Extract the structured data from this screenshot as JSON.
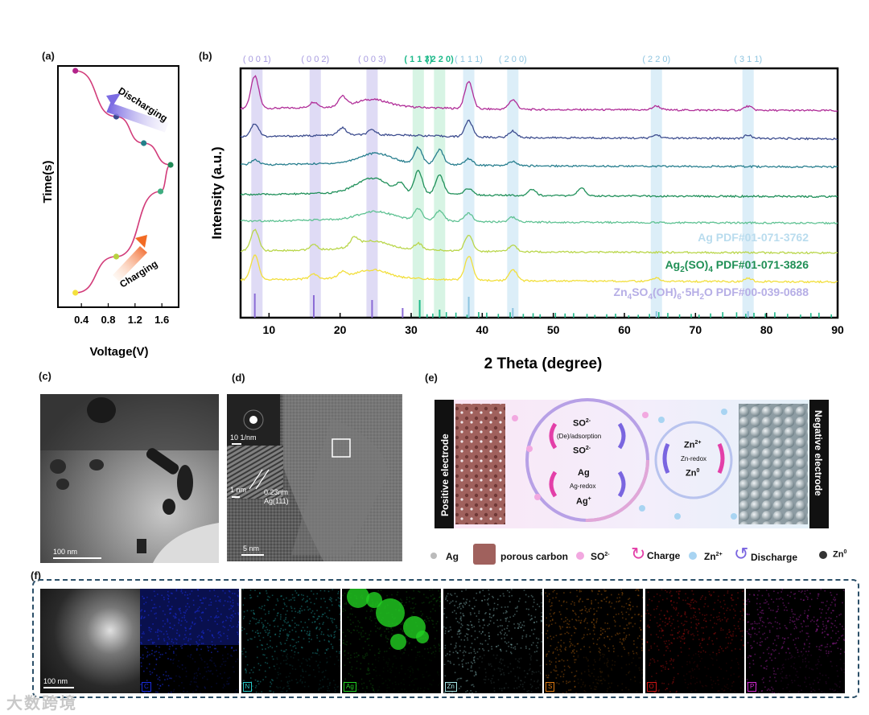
{
  "panels": {
    "a": "(a)",
    "b": "(b)",
    "c": "(c)",
    "d": "(d)",
    "e": "(e)",
    "f": "(f)"
  },
  "panel_a": {
    "ylabel": "Time(s)",
    "xlabel": "Voltage(V)",
    "ticks": [
      "0.4",
      "0.8",
      "1.2",
      "1.6"
    ],
    "discharging": "Discharging",
    "charging": "Charging",
    "points": [
      {
        "v": 0.31,
        "t": 0.94,
        "color": "#b2238a"
      },
      {
        "v": 0.92,
        "t": 0.75,
        "color": "#3b4a8c"
      },
      {
        "v": 1.33,
        "t": 0.64,
        "color": "#23808a"
      },
      {
        "v": 1.73,
        "t": 0.55,
        "color": "#1f8a55"
      },
      {
        "v": 1.58,
        "t": 0.44,
        "color": "#3fad80"
      },
      {
        "v": 0.92,
        "t": 0.17,
        "color": "#b7d140"
      },
      {
        "v": 0.31,
        "t": 0.02,
        "color": "#f4e13e"
      }
    ]
  },
  "chart_data": {
    "type": "line",
    "xlabel": "2 Theta (degree)",
    "ylabel": "Intensity (a.u.)",
    "xlim": [
      6,
      90
    ],
    "xticks": [
      10,
      20,
      30,
      40,
      50,
      60,
      70,
      80,
      90
    ],
    "peak_labels": [
      {
        "label": "( 0 0 1)",
        "x": 8.3,
        "color": "#a79be0"
      },
      {
        "label": "( 0 0 2)",
        "x": 16.5,
        "color": "#a79be0"
      },
      {
        "label": "( 0 0 3)",
        "x": 24.5,
        "color": "#a79be0"
      },
      {
        "label": "( 1 1 3)",
        "x": 31.0,
        "color": "#1db98a"
      },
      {
        "label": "( 2 2 0)",
        "x": 34.0,
        "color": "#1db98a"
      },
      {
        "label": "( 1 1 1)",
        "x": 38.1,
        "color": "#8dc4e0"
      },
      {
        "label": "( 2 0 0)",
        "x": 44.3,
        "color": "#8dc4e0"
      },
      {
        "label": "( 2 2 0)",
        "x": 64.5,
        "color": "#8dc4e0"
      },
      {
        "label": "( 3 1 1)",
        "x": 77.4,
        "color": "#8dc4e0"
      }
    ],
    "series": [
      {
        "name": "s1",
        "color": "#b02d98",
        "peaks": [
          [
            8.0,
            40
          ],
          [
            16.3,
            7
          ],
          [
            20.3,
            12
          ],
          [
            24.5,
            9
          ],
          [
            38.1,
            34
          ],
          [
            44.3,
            12
          ],
          [
            64.5,
            5
          ],
          [
            77.4,
            5
          ]
        ]
      },
      {
        "name": "s2",
        "color": "#3d4d8f",
        "peaks": [
          [
            8.0,
            16
          ],
          [
            20.3,
            9
          ],
          [
            24.5,
            6
          ],
          [
            38.1,
            20
          ],
          [
            44.3,
            8
          ],
          [
            64.5,
            4
          ],
          [
            77.4,
            4
          ]
        ]
      },
      {
        "name": "s3",
        "color": "#277e8e",
        "peaks": [
          [
            8.0,
            6
          ],
          [
            25.0,
            12
          ],
          [
            31.0,
            20
          ],
          [
            34.0,
            18
          ],
          [
            38.1,
            8
          ],
          [
            44.3,
            5
          ]
        ]
      },
      {
        "name": "s4",
        "color": "#20905a",
        "peaks": [
          [
            24.5,
            18
          ],
          [
            28.5,
            10
          ],
          [
            31.0,
            28
          ],
          [
            34.0,
            24
          ],
          [
            38.1,
            8
          ],
          [
            47.0,
            8
          ],
          [
            54.0,
            9
          ]
        ]
      },
      {
        "name": "s5",
        "color": "#5fc293",
        "peaks": [
          [
            25.0,
            10
          ],
          [
            31.0,
            14
          ],
          [
            34.0,
            12
          ],
          [
            38.1,
            10
          ],
          [
            44.3,
            6
          ]
        ]
      },
      {
        "name": "s6",
        "color": "#b9d64a",
        "peaks": [
          [
            8.0,
            26
          ],
          [
            16.3,
            6
          ],
          [
            22.0,
            10
          ],
          [
            24.5,
            10
          ],
          [
            31.0,
            8
          ],
          [
            38.1,
            20
          ],
          [
            44.3,
            8
          ]
        ]
      },
      {
        "name": "s7",
        "color": "#f2df3c",
        "peaks": [
          [
            8.0,
            30
          ],
          [
            16.3,
            6
          ],
          [
            20.3,
            7
          ],
          [
            24.5,
            10
          ],
          [
            38.1,
            30
          ],
          [
            44.3,
            14
          ],
          [
            64.5,
            4
          ],
          [
            77.4,
            4
          ]
        ]
      }
    ],
    "ref_lines": [
      {
        "x": 8.0,
        "h": 30,
        "color": "#8b6cd6"
      },
      {
        "x": 16.3,
        "h": 28,
        "color": "#8b6cd6"
      },
      {
        "x": 24.5,
        "h": 22,
        "color": "#8b6cd6"
      },
      {
        "x": 28.8,
        "h": 12,
        "color": "#8b6cd6"
      },
      {
        "x": 31.2,
        "h": 22,
        "color": "#1db98a"
      },
      {
        "x": 34.0,
        "h": 10,
        "color": "#1db98a"
      },
      {
        "x": 38.1,
        "h": 26,
        "color": "#8dc4e0"
      },
      {
        "x": 44.3,
        "h": 12,
        "color": "#8dc4e0"
      },
      {
        "x": 64.5,
        "h": 8,
        "color": "#8dc4e0"
      },
      {
        "x": 77.4,
        "h": 8,
        "color": "#8dc4e0"
      }
    ],
    "refs": [
      {
        "label": "Ag PDF#01-071-3762",
        "color": "#b9dcee"
      },
      {
        "label_main": "Ag",
        "sub": "2",
        "mid": "(SO)",
        "sub2": "4",
        "tail": " PDF#01-071-3826",
        "color": "#1f8f55"
      },
      {
        "label_main": "Zn",
        "sub": "4",
        "mid": "SO",
        "sub2": "4",
        "mid2": "(OH)",
        "sub3": "6",
        "tail": "·5H",
        "sub4": "2",
        "tail2": "O PDF#00-039-0688",
        "color": "#b6aee6"
      }
    ]
  },
  "panel_c": {
    "scale": "100 nm"
  },
  "panel_d": {
    "fft_scale": "10 1/nm",
    "inset_scale": "1 nm",
    "d_spacing": "0.23nm",
    "plane": "Ag(111)",
    "scale": "5 nm"
  },
  "panel_e": {
    "positive": "Positive electrode",
    "negative": "Negative electrode",
    "so_top": "SO",
    "so_sup": "2-",
    "adsorption": "(De)/adsorption",
    "ag": "Ag",
    "ag_redox": "Ag-redox",
    "ag_ion": "Ag",
    "ag_sup": "+",
    "zn2": "Zn",
    "zn2_sup": "2+",
    "zn_redox": "Zn-redox",
    "zn0": "Zn",
    "zn0_sup": "0",
    "legend": {
      "ag": "Ag",
      "carbon": "porous carbon",
      "so": "SO",
      "so_sup": "2-",
      "charge": "Charge",
      "zn": "Zn",
      "zn_sup": "2+",
      "discharge": "Discharge",
      "zn0": "Zn",
      "zn0_sup": "0"
    }
  },
  "panel_f": {
    "scale": "100 nm",
    "maps": [
      {
        "el": "C",
        "color": "#1a2de0"
      },
      {
        "el": "N",
        "color": "#26c9c9"
      },
      {
        "el": "Ag",
        "color": "#22d022"
      },
      {
        "el": "Zn",
        "color": "#a9e8e8"
      },
      {
        "el": "S",
        "color": "#e07b12"
      },
      {
        "el": "O",
        "color": "#d01515"
      },
      {
        "el": "P",
        "color": "#d12ad1"
      }
    ]
  },
  "watermark": "大数跨境"
}
